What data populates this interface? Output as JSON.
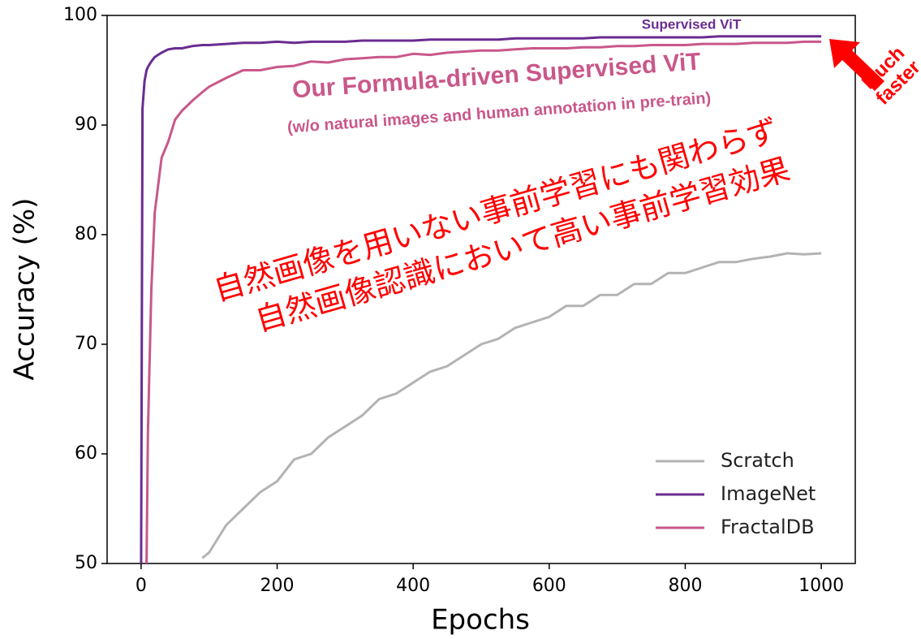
{
  "chart_data": {
    "type": "line",
    "xlabel": "Epochs",
    "ylabel": "Accuracy (%)",
    "x": [
      0,
      2,
      5,
      8,
      10,
      15,
      20,
      30,
      40,
      50,
      60,
      75,
      90,
      100,
      125,
      150,
      175,
      200,
      225,
      250,
      275,
      300,
      325,
      350,
      375,
      400,
      425,
      450,
      475,
      500,
      525,
      550,
      575,
      600,
      625,
      650,
      675,
      700,
      725,
      750,
      775,
      800,
      825,
      850,
      875,
      900,
      925,
      950,
      975,
      1000
    ],
    "series": [
      {
        "name": "Scratch",
        "color": "#b3b3b3",
        "values": [
          null,
          null,
          null,
          null,
          null,
          null,
          null,
          null,
          null,
          null,
          null,
          null,
          50.5,
          51,
          53.5,
          55,
          56.5,
          57.5,
          59.5,
          60,
          61.5,
          62.5,
          63.5,
          65,
          65.5,
          66.5,
          67.5,
          68,
          69,
          70,
          70.5,
          71.5,
          72,
          72.5,
          73.5,
          73.5,
          74.5,
          74.5,
          75.5,
          75.5,
          76.5,
          76.5,
          77,
          77.5,
          77.5,
          77.8,
          78,
          78.3,
          78.2,
          78.3
        ]
      },
      {
        "name": "ImageNet",
        "color": "#6a2c91",
        "values": [
          50,
          91.5,
          94,
          95,
          95.3,
          95.8,
          96.2,
          96.6,
          96.9,
          97.0,
          97.0,
          97.2,
          97.3,
          97.3,
          97.4,
          97.5,
          97.5,
          97.6,
          97.5,
          97.6,
          97.6,
          97.6,
          97.7,
          97.7,
          97.7,
          97.7,
          97.8,
          97.8,
          97.8,
          97.8,
          97.8,
          97.9,
          97.9,
          97.9,
          97.9,
          97.9,
          98.0,
          98.0,
          98.0,
          98.0,
          98.0,
          98.0,
          98.0,
          98.1,
          98.1,
          98.1,
          98.1,
          98.1,
          98.1,
          98.1
        ]
      },
      {
        "name": "FractalDB",
        "color": "#c9578a",
        "values": [
          null,
          null,
          null,
          50,
          62,
          75,
          82,
          87,
          88.5,
          90.5,
          91.3,
          92.2,
          93,
          93.5,
          94.3,
          95,
          95,
          95.3,
          95.4,
          95.8,
          95.7,
          96,
          96.1,
          96.2,
          96.2,
          96.5,
          96.4,
          96.6,
          96.7,
          96.8,
          96.8,
          96.9,
          97,
          97,
          97,
          97.1,
          97.1,
          97.2,
          97.2,
          97.3,
          97.3,
          97.3,
          97.4,
          97.4,
          97.4,
          97.5,
          97.5,
          97.5,
          97.6,
          97.6
        ]
      }
    ],
    "xlim": [
      -50,
      1050
    ],
    "xticks": [
      0,
      200,
      400,
      600,
      800,
      1000
    ],
    "ylim": [
      50,
      100
    ],
    "yticks": [
      50,
      60,
      70,
      80,
      90,
      100
    ],
    "legend": "lower right",
    "annotations": {
      "supervised": "Supervised ViT",
      "formula": "Our Formula-driven Supervised ViT",
      "formula_note": "(w/o natural images and human annotation in pre-train)",
      "jp_line1": "自然画像を用いない事前学習にも関わらず",
      "jp_line2": "自然画像認識において高い事前学習効果",
      "much": "Much",
      "faster": "faster"
    }
  }
}
